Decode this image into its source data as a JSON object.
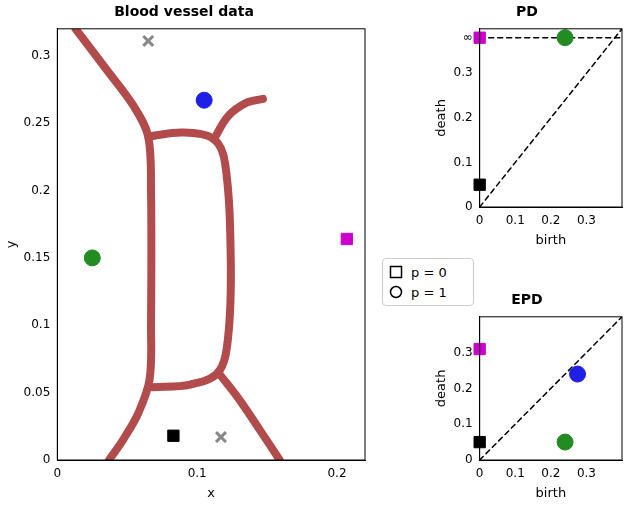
{
  "chart_data": [
    {
      "type": "scatter",
      "title": "Blood vessel data",
      "x_label": "x",
      "y_label": "y",
      "xlim": [
        0,
        0.22
      ],
      "ylim": [
        0,
        0.32
      ],
      "xticks": [
        0,
        0.1,
        0.2
      ],
      "yticks": [
        0,
        0.05,
        0.1,
        0.15,
        0.2,
        0.25,
        0.3
      ],
      "grid": false,
      "series": [
        {
          "type": "line",
          "color": "#b24b4b",
          "marker": "none",
          "line_style": "solid",
          "x": [
            0.013,
            0.035,
            0.055,
            0.065,
            0.067,
            0.067,
            0.066,
            0.058,
            0.047,
            0.037
          ],
          "values": [
            0.32,
            0.29,
            0.262,
            0.24,
            0.2,
            0.1,
            0.06,
            0.035,
            0.015,
            0
          ]
        },
        {
          "type": "line",
          "color": "#b24b4b",
          "marker": "none",
          "line_style": "solid",
          "x": [
            0.065,
            0.09,
            0.112,
            0.12,
            0.124,
            0.122,
            0.115,
            0.095,
            0.068
          ],
          "values": [
            0.24,
            0.243,
            0.238,
            0.22,
            0.15,
            0.09,
            0.065,
            0.056,
            0.054
          ]
        },
        {
          "type": "line",
          "color": "#b24b4b",
          "marker": "none",
          "line_style": "solid",
          "x": [
            0.115,
            0.13,
            0.145,
            0.159
          ],
          "values": [
            0.065,
            0.045,
            0.022,
            0
          ]
        },
        {
          "type": "line",
          "color": "#b24b4b",
          "marker": "none",
          "line_style": "solid",
          "x": [
            0.112,
            0.122,
            0.135,
            0.147
          ],
          "values": [
            0.238,
            0.255,
            0.265,
            0.268
          ]
        },
        {
          "type": "scatter",
          "color": "#888888",
          "marker": "cross",
          "x": [
            0.065,
            0.117
          ],
          "values": [
            0.311,
            0.017
          ]
        },
        {
          "type": "scatter",
          "color": "#1f1fe6",
          "marker": "circle",
          "x": [
            0.105
          ],
          "values": [
            0.267
          ]
        },
        {
          "type": "scatter",
          "color": "#228b22",
          "marker": "circle",
          "x": [
            0.025
          ],
          "values": [
            0.15
          ]
        },
        {
          "type": "scatter",
          "color": "#cc00cc",
          "marker": "square",
          "x": [
            0.207
          ],
          "values": [
            0.164
          ]
        },
        {
          "type": "scatter",
          "color": "#000000",
          "marker": "square",
          "x": [
            0.083
          ],
          "values": [
            0.018
          ]
        }
      ]
    },
    {
      "type": "scatter",
      "title": "PD",
      "x_label": "birth",
      "y_label": "death",
      "xlim": [
        0,
        0.4
      ],
      "ylim": [
        0,
        0.4
      ],
      "xticks": [
        0,
        0.1,
        0.2,
        0.3
      ],
      "yticks": [
        0,
        0.1,
        0.2,
        0.3,
        {
          "value": 0.38,
          "label": "∞"
        }
      ],
      "grid": false,
      "series": [
        {
          "type": "line",
          "color": "#000000",
          "marker": "none",
          "line_style": "dashed",
          "x": [
            0,
            0.4
          ],
          "values": [
            0,
            0.4
          ]
        },
        {
          "type": "line",
          "color": "#000000",
          "marker": "none",
          "line_style": "dashed",
          "x": [
            0,
            0.4
          ],
          "values": [
            0.38,
            0.38
          ]
        },
        {
          "type": "scatter",
          "color": "#cc00cc",
          "marker": "square",
          "x": [
            0
          ],
          "values": [
            0.38
          ]
        },
        {
          "type": "scatter",
          "color": "#228b22",
          "marker": "circle",
          "x": [
            0.24
          ],
          "values": [
            0.38
          ]
        },
        {
          "type": "scatter",
          "color": "#000000",
          "marker": "square",
          "x": [
            0
          ],
          "values": [
            0.05
          ]
        }
      ]
    },
    {
      "type": "scatter",
      "title": "EPD",
      "x_label": "birth",
      "y_label": "death",
      "xlim": [
        0,
        0.4
      ],
      "ylim": [
        0,
        0.4
      ],
      "xticks": [
        0,
        0.1,
        0.2,
        0.3
      ],
      "yticks": [
        0,
        0.1,
        0.2,
        0.3
      ],
      "grid": false,
      "series": [
        {
          "type": "line",
          "color": "#000000",
          "marker": "none",
          "line_style": "dashed",
          "x": [
            0,
            0.4
          ],
          "values": [
            0,
            0.4
          ]
        },
        {
          "type": "scatter",
          "color": "#cc00cc",
          "marker": "square",
          "x": [
            0
          ],
          "values": [
            0.31
          ]
        },
        {
          "type": "scatter",
          "color": "#1f1fe6",
          "marker": "circle",
          "x": [
            0.275
          ],
          "values": [
            0.24
          ]
        },
        {
          "type": "scatter",
          "color": "#228b22",
          "marker": "circle",
          "x": [
            0.24
          ],
          "values": [
            0.05
          ]
        },
        {
          "type": "scatter",
          "color": "#000000",
          "marker": "square",
          "x": [
            0
          ],
          "values": [
            0.05
          ]
        }
      ]
    }
  ],
  "legend_items": [
    {
      "label": "p = 0",
      "marker": "square"
    },
    {
      "label": "p = 1",
      "marker": "circle"
    }
  ]
}
